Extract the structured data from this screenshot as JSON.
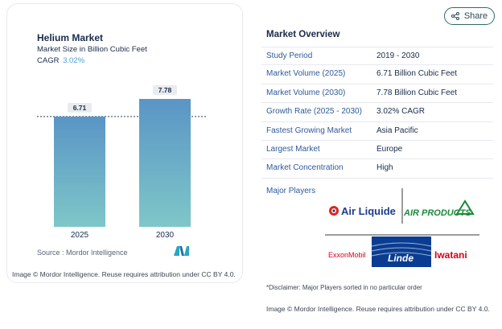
{
  "share": {
    "label": "Share",
    "icon": "share-icon"
  },
  "chart": {
    "title": "Helium Market",
    "subtitle": "Market Size in Billion Cubic Feet",
    "cagr_label": "CAGR",
    "cagr_value": "3.02%",
    "source": "Source :  Mordor Intelligence",
    "credit": "Image © Mordor Intelligence. Reuse requires attribution under CC BY 4.0."
  },
  "chart_data": {
    "type": "bar",
    "title": "Helium Market",
    "subtitle": "Market Size in Billion Cubic Feet",
    "categories": [
      "2025",
      "2030"
    ],
    "values": [
      6.71,
      7.78
    ],
    "data_labels": [
      "6.71",
      "7.78"
    ],
    "ylim": [
      0,
      8.5
    ],
    "grid": false,
    "reference_line": "dashed line at 2025 value",
    "colors": {
      "bar_top": "#5a95c6",
      "bar_bottom": "#7ec7c8",
      "label_bg": "#e9ecef"
    }
  },
  "overview": {
    "title": "Market Overview",
    "rows": [
      {
        "label": "Study Period",
        "value": "2019 - 2030"
      },
      {
        "label": "Market Volume (2025)",
        "value": "6.71 Billion Cubic Feet"
      },
      {
        "label": "Market Volume (2030)",
        "value": "7.78 Billion Cubic Feet"
      },
      {
        "label": "Growth Rate (2025 - 2030)",
        "value": "3.02% CAGR"
      },
      {
        "label": "Fastest Growing Market",
        "value": "Asia Pacific"
      },
      {
        "label": "Largest Market",
        "value": "Europe"
      },
      {
        "label": "Market Concentration",
        "value": "High"
      }
    ]
  },
  "players": {
    "title": "Major Players",
    "logos": [
      "Air Liquide",
      "AIR PRODUCTS",
      "ExxonMobil",
      "Linde",
      "Iwatani"
    ],
    "disclaimer": "*Disclaimer: Major Players sorted in no particular order",
    "credit": "Image © Mordor Intelligence. Reuse requires attribution under CC BY 4.0."
  },
  "colors": {
    "accent": "#2e5a9a",
    "cagr": "#4d9bd6",
    "share_border": "#2d6a6a"
  }
}
